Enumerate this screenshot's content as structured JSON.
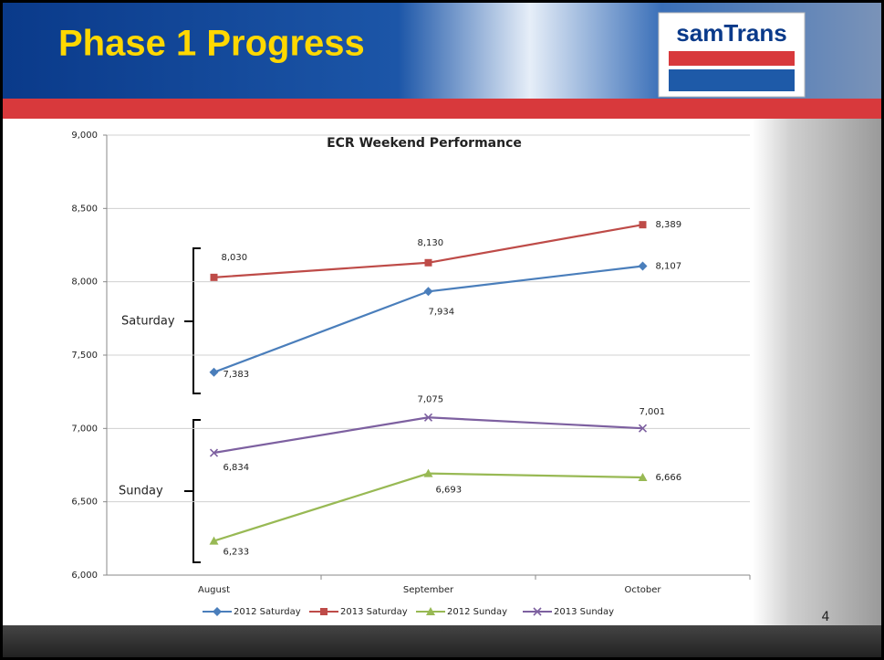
{
  "slide": {
    "title": "Phase 1 Progress",
    "logo": "samTrans",
    "page_number": "4"
  },
  "chart_data": {
    "type": "line",
    "title": "ECR Weekend Performance",
    "categories": [
      "August",
      "September",
      "October"
    ],
    "series": [
      {
        "name": "2012 Saturday",
        "color": "#4a7ebb",
        "marker": "diamond",
        "values": [
          7383,
          7934,
          8107
        ],
        "value_labels": [
          "7,383",
          "7,934",
          "8,107"
        ]
      },
      {
        "name": "2013 Saturday",
        "color": "#be4b48",
        "marker": "square",
        "values": [
          8030,
          8130,
          8389
        ],
        "value_labels": [
          "8,030",
          "8,130",
          "8,389"
        ]
      },
      {
        "name": "2012 Sunday",
        "color": "#98b954",
        "marker": "triangle",
        "values": [
          6233,
          6693,
          6666
        ],
        "value_labels": [
          "6,233",
          "6,693",
          "6,666"
        ]
      },
      {
        "name": "2013 Sunday",
        "color": "#7d60a0",
        "marker": "x",
        "values": [
          6834,
          7075,
          7001
        ],
        "value_labels": [
          "6,834",
          "7,075",
          "7,001"
        ]
      }
    ],
    "ylim": [
      6000,
      9000
    ],
    "yticks": [
      {
        "value": 6000,
        "label": "6,000"
      },
      {
        "value": 6500,
        "label": "6,500"
      },
      {
        "value": 7000,
        "label": "7,000"
      },
      {
        "value": 7500,
        "label": "7,500"
      },
      {
        "value": 8000,
        "label": "8,000"
      },
      {
        "value": 8500,
        "label": "8,500"
      },
      {
        "value": 9000,
        "label": "9,000"
      }
    ],
    "grid": true,
    "legend": "bottom",
    "annotations": [
      "Saturday",
      "Sunday"
    ]
  }
}
